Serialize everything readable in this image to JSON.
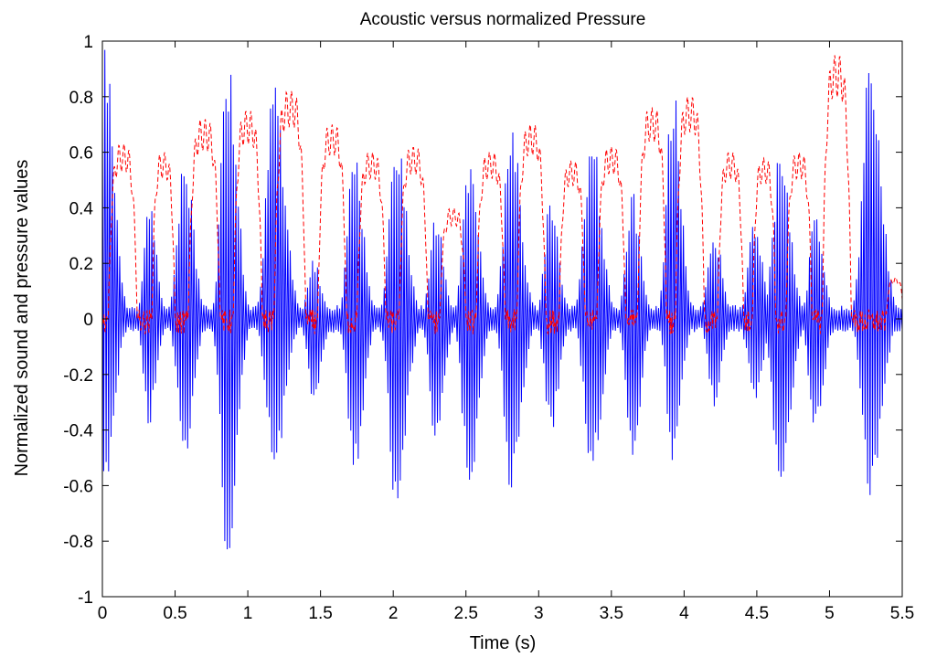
{
  "chart_data": {
    "type": "line",
    "title": "Acoustic versus normalized Pressure",
    "xlabel": "Time (s)",
    "ylabel": "Normalized sound and pressure values",
    "xlim": [
      0,
      5.5
    ],
    "ylim": [
      -1,
      1
    ],
    "xticks": [
      0,
      0.5,
      1,
      1.5,
      2,
      2.5,
      3,
      3.5,
      4,
      4.5,
      5,
      5.5
    ],
    "xtick_labels": [
      "0",
      "0.5",
      "1",
      "1.5",
      "2",
      "2.5",
      "3",
      "3.5",
      "4",
      "4.5",
      "5",
      "5.5"
    ],
    "yticks": [
      -1,
      -0.8,
      -0.6,
      -0.4,
      -0.2,
      0,
      0.2,
      0.4,
      0.6,
      0.8,
      1
    ],
    "ytick_labels": [
      "-1",
      "-0.8",
      "-0.6",
      "-0.4",
      "-0.2",
      "0",
      "0.2",
      "0.4",
      "0.6",
      "0.8",
      "1"
    ],
    "grid": false,
    "legend": "none",
    "series": [
      {
        "style": "solid",
        "color": "#0000ff",
        "bursts": [
          {
            "t": 0.02,
            "width": 0.11,
            "pos_peak": 1.0,
            "neg_peak": -0.62
          },
          {
            "t": 0.32,
            "width": 0.09,
            "pos_peak": 0.42,
            "neg_peak": -0.4
          },
          {
            "t": 0.56,
            "width": 0.11,
            "pos_peak": 0.62,
            "neg_peak": -0.52
          },
          {
            "t": 0.86,
            "width": 0.11,
            "pos_peak": 1.0,
            "neg_peak": -0.95
          },
          {
            "t": 1.18,
            "width": 0.13,
            "pos_peak": 0.88,
            "neg_peak": -0.58
          },
          {
            "t": 1.45,
            "width": 0.1,
            "pos_peak": 0.22,
            "neg_peak": -0.3
          },
          {
            "t": 1.73,
            "width": 0.11,
            "pos_peak": 0.62,
            "neg_peak": -0.6
          },
          {
            "t": 2.02,
            "width": 0.12,
            "pos_peak": 0.7,
            "neg_peak": -0.71
          },
          {
            "t": 2.29,
            "width": 0.1,
            "pos_peak": 0.4,
            "neg_peak": -0.45
          },
          {
            "t": 2.52,
            "width": 0.11,
            "pos_peak": 0.6,
            "neg_peak": -0.64
          },
          {
            "t": 2.81,
            "width": 0.12,
            "pos_peak": 0.72,
            "neg_peak": -0.63
          },
          {
            "t": 3.08,
            "width": 0.1,
            "pos_peak": 0.48,
            "neg_peak": -0.43
          },
          {
            "t": 3.36,
            "width": 0.12,
            "pos_peak": 0.7,
            "neg_peak": -0.6
          },
          {
            "t": 3.64,
            "width": 0.1,
            "pos_peak": 0.48,
            "neg_peak": -0.55
          },
          {
            "t": 3.92,
            "width": 0.1,
            "pos_peak": 0.88,
            "neg_peak": -0.55
          },
          {
            "t": 4.2,
            "width": 0.1,
            "pos_peak": 0.35,
            "neg_peak": -0.32
          },
          {
            "t": 4.48,
            "width": 0.11,
            "pos_peak": 0.35,
            "neg_peak": -0.3
          },
          {
            "t": 4.66,
            "width": 0.12,
            "pos_peak": 0.63,
            "neg_peak": -0.65
          },
          {
            "t": 4.9,
            "width": 0.1,
            "pos_peak": 0.38,
            "neg_peak": -0.45
          },
          {
            "t": 5.28,
            "width": 0.13,
            "pos_peak": 1.0,
            "neg_peak": -0.7
          }
        ]
      },
      {
        "style": "dashed",
        "color": "#ff0000",
        "bursts": [
          {
            "t": 0.14,
            "width": 0.1,
            "peak": 0.63
          },
          {
            "t": 0.42,
            "width": 0.08,
            "peak": 0.6
          },
          {
            "t": 0.7,
            "width": 0.11,
            "peak": 0.72
          },
          {
            "t": 1.0,
            "width": 0.1,
            "peak": 0.75
          },
          {
            "t": 1.29,
            "width": 0.11,
            "peak": 0.82
          },
          {
            "t": 1.58,
            "width": 0.1,
            "peak": 0.7
          },
          {
            "t": 1.85,
            "width": 0.1,
            "peak": 0.6
          },
          {
            "t": 2.14,
            "width": 0.1,
            "peak": 0.62
          },
          {
            "t": 2.41,
            "width": 0.09,
            "pos": 0.4,
            "peak": 0.4
          },
          {
            "t": 2.67,
            "width": 0.1,
            "peak": 0.6
          },
          {
            "t": 2.95,
            "width": 0.1,
            "peak": 0.7
          },
          {
            "t": 3.23,
            "width": 0.09,
            "peak": 0.57
          },
          {
            "t": 3.5,
            "width": 0.1,
            "peak": 0.62
          },
          {
            "t": 3.78,
            "width": 0.1,
            "peak": 0.76
          },
          {
            "t": 4.04,
            "width": 0.1,
            "peak": 0.8
          },
          {
            "t": 4.32,
            "width": 0.09,
            "peak": 0.6
          },
          {
            "t": 4.55,
            "width": 0.08,
            "peak": 0.58
          },
          {
            "t": 4.79,
            "width": 0.09,
            "peak": 0.6
          },
          {
            "t": 5.05,
            "width": 0.1,
            "peak": 0.95
          },
          {
            "t": 5.45,
            "width": 0.06,
            "peak": 0.15
          }
        ]
      }
    ]
  }
}
